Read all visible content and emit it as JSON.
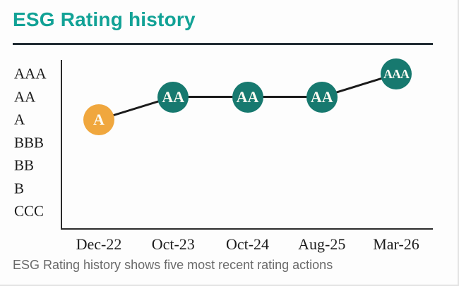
{
  "title": "ESG Rating history",
  "caption": "ESG Rating history shows five most recent rating actions",
  "colors": {
    "title_teal": "#12a296",
    "point_teal": "#17796f",
    "point_orange": "#f0a73e",
    "trend_line": "#1b1b1b",
    "axis": "#2b2b2b",
    "axis_label": "#1c1c1c",
    "caption_gray": "#6a6a6a",
    "background": "#fdfdfd"
  },
  "chart_data": {
    "type": "line",
    "title": "ESG Rating history",
    "x": [
      "Dec-22",
      "Oct-23",
      "Oct-24",
      "Aug-25",
      "Mar-26"
    ],
    "values": [
      "A",
      "AA",
      "AA",
      "AA",
      "AAA"
    ],
    "y_axis_levels": [
      "AAA",
      "AA",
      "A",
      "BBB",
      "BB",
      "B",
      "CCC"
    ],
    "point_colors": [
      "#f0a73e",
      "#17796f",
      "#17796f",
      "#17796f",
      "#17796f"
    ],
    "xlabel": "",
    "ylabel": "",
    "legend": "none",
    "grid": false,
    "annotation": "ESG Rating history shows five most recent rating actions"
  }
}
